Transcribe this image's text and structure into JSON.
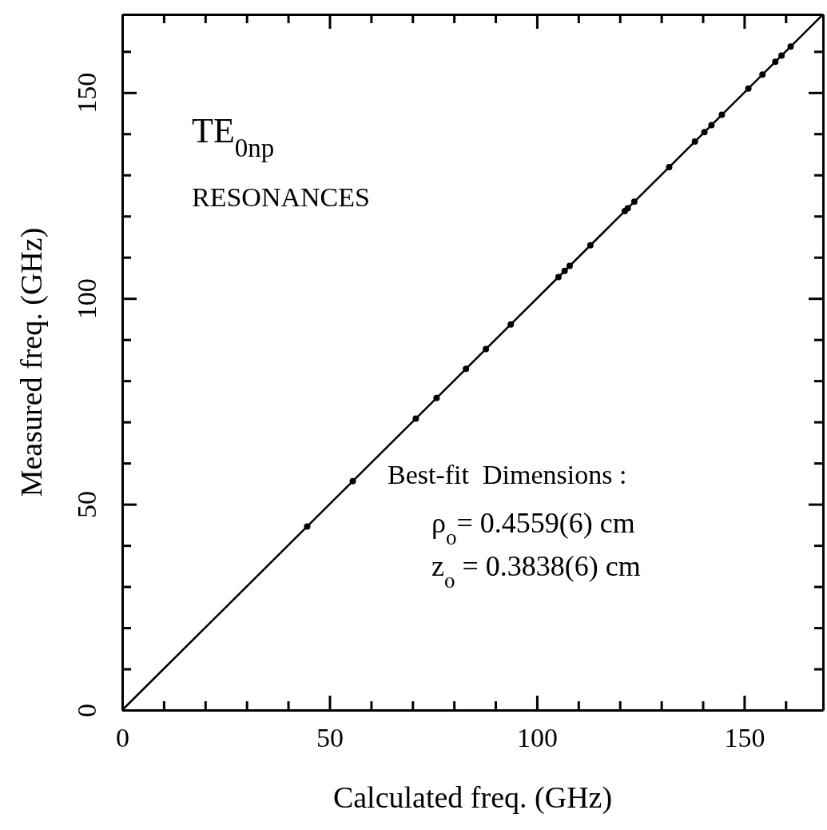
{
  "chart_data": {
    "type": "scatter",
    "xlabel": "Calculated freq. (GHz)",
    "ylabel": "Measured freq. (GHz)",
    "xlim": [
      0,
      169
    ],
    "ylim": [
      0,
      169
    ],
    "xticks": [
      0,
      {
        "value": 10,
        "label": null
      },
      {
        "value": 20,
        "label": null
      },
      {
        "value": 30,
        "label": null
      },
      {
        "value": 40,
        "label": null
      },
      50,
      {
        "value": 60,
        "label": null
      },
      {
        "value": 70,
        "label": null
      },
      {
        "value": 80,
        "label": null
      },
      {
        "value": 90,
        "label": null
      },
      100,
      {
        "value": 110,
        "label": null
      },
      {
        "value": 120,
        "label": null
      },
      {
        "value": 130,
        "label": null
      },
      {
        "value": 140,
        "label": null
      },
      150,
      {
        "value": 160,
        "label": null
      }
    ],
    "yticks": [
      0,
      {
        "value": 10,
        "label": null
      },
      {
        "value": 20,
        "label": null
      },
      {
        "value": 30,
        "label": null
      },
      {
        "value": 40,
        "label": null
      },
      50,
      {
        "value": 60,
        "label": null
      },
      {
        "value": 70,
        "label": null
      },
      {
        "value": 80,
        "label": null
      },
      {
        "value": 90,
        "label": null
      },
      100,
      {
        "value": 110,
        "label": null
      },
      {
        "value": 120,
        "label": null
      },
      {
        "value": 130,
        "label": null
      },
      {
        "value": 140,
        "label": null
      },
      150,
      {
        "value": 160,
        "label": null
      }
    ],
    "grid": false,
    "series": [
      {
        "marker": "circle",
        "color": "#000000",
        "x": [
          44.6,
          55.6,
          70.8,
          75.8,
          82.9,
          87.7,
          93.7,
          105.2,
          106.7,
          107.9,
          112.9,
          121.2,
          121.9,
          123.5,
          131.9,
          138.1,
          140.4,
          142.1,
          144.6,
          151,
          154.4,
          157.5,
          159,
          161.2
        ],
        "values": [
          44.6,
          55.6,
          70.8,
          75.8,
          82.9,
          87.7,
          93.7,
          105.2,
          106.7,
          107.9,
          112.9,
          121.2,
          121.9,
          123.5,
          131.9,
          138.1,
          140.4,
          142.1,
          144.6,
          151,
          154.4,
          157.5,
          159,
          161.2
        ]
      },
      {
        "type": "line",
        "marker": "none",
        "color": "#000000",
        "x": [
          0,
          169
        ],
        "values": [
          0,
          169
        ]
      }
    ],
    "annotations": [
      "TE$_{0np}$",
      "RESONANCES",
      "Best-fit  Dimensions :",
      "ρ$_{o}$= 0.4559(6) cm",
      "z$_{o}$ = 0.3838(6) cm"
    ]
  }
}
